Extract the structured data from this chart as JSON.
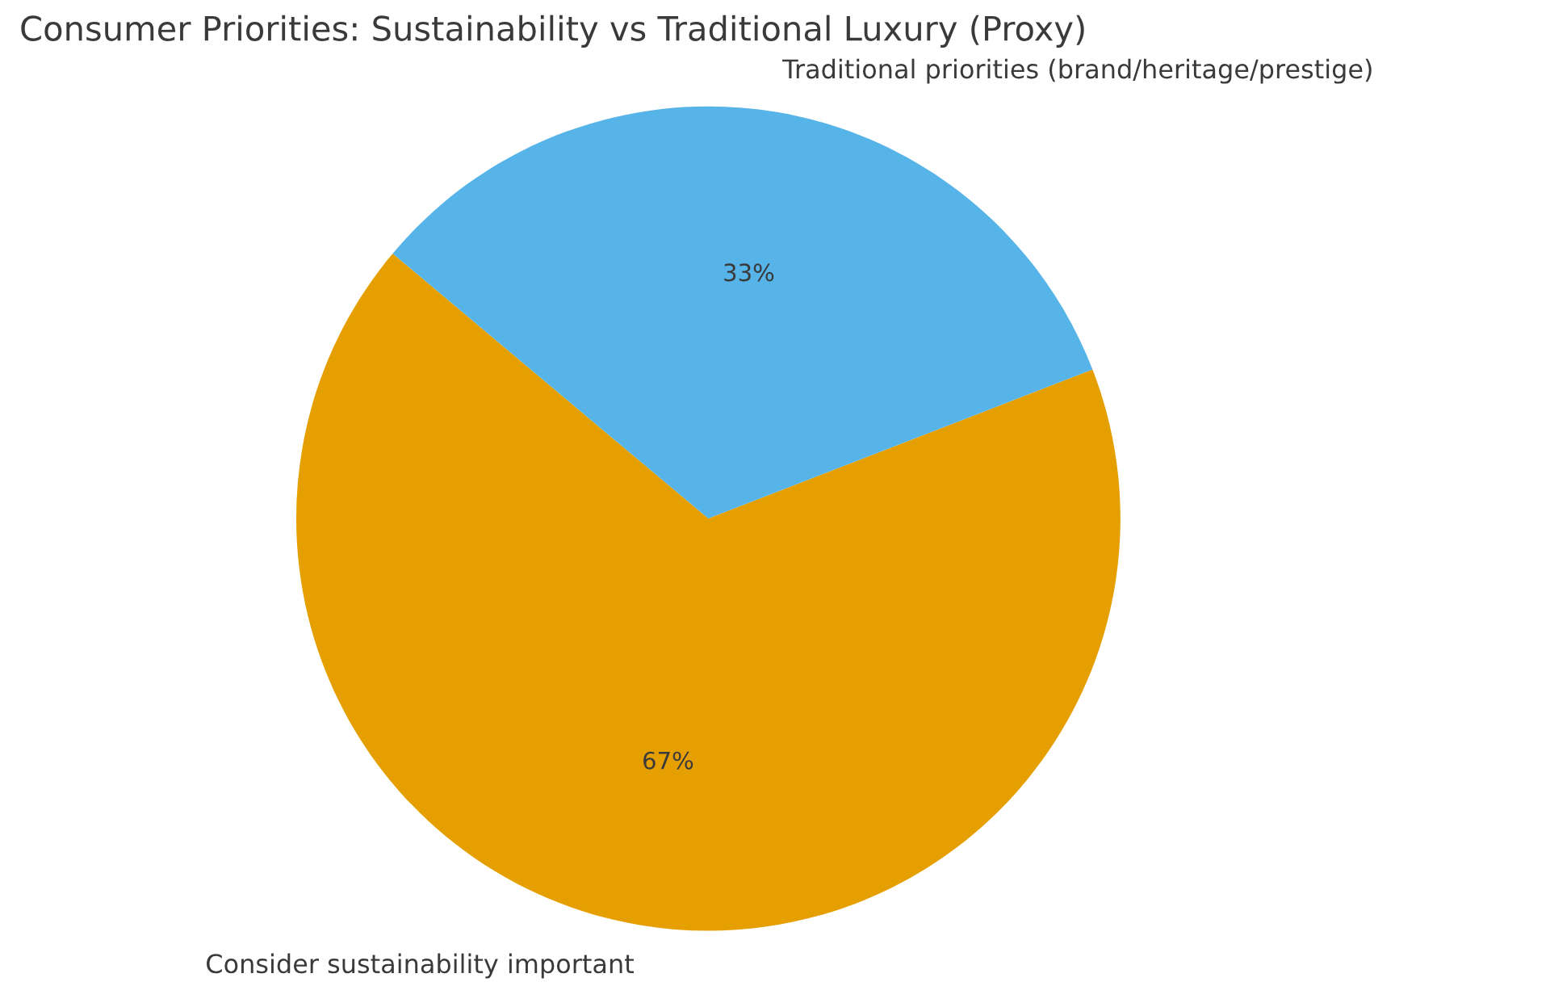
{
  "chart_data": {
    "type": "pie",
    "title": "Consumer Priorities: Sustainability vs Traditional Luxury (Proxy)",
    "categories": [
      "Consider sustainability important",
      "Traditional priorities (brand/heritage/prestige)"
    ],
    "values": [
      67,
      33
    ],
    "colors": [
      "#e69f00",
      "#56b4e9"
    ],
    "value_labels": [
      "67%",
      "33%"
    ]
  }
}
